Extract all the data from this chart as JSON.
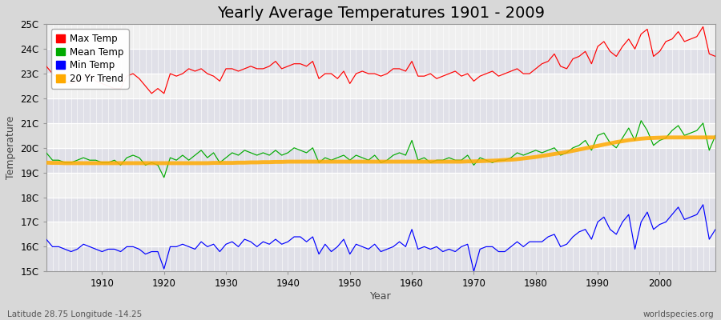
{
  "title": "Yearly Average Temperatures 1901 - 2009",
  "xlabel": "Year",
  "ylabel": "Temperature",
  "bottom_left_text": "Latitude 28.75 Longitude -14.25",
  "bottom_right_text": "worldspecies.org",
  "years": [
    1901,
    1902,
    1903,
    1904,
    1905,
    1906,
    1907,
    1908,
    1909,
    1910,
    1911,
    1912,
    1913,
    1914,
    1915,
    1916,
    1917,
    1918,
    1919,
    1920,
    1921,
    1922,
    1923,
    1924,
    1925,
    1926,
    1927,
    1928,
    1929,
    1930,
    1931,
    1932,
    1933,
    1934,
    1935,
    1936,
    1937,
    1938,
    1939,
    1940,
    1941,
    1942,
    1943,
    1944,
    1945,
    1946,
    1947,
    1948,
    1949,
    1950,
    1951,
    1952,
    1953,
    1954,
    1955,
    1956,
    1957,
    1958,
    1959,
    1960,
    1961,
    1962,
    1963,
    1964,
    1965,
    1966,
    1967,
    1968,
    1969,
    1970,
    1971,
    1972,
    1973,
    1974,
    1975,
    1976,
    1977,
    1978,
    1979,
    1980,
    1981,
    1982,
    1983,
    1984,
    1985,
    1986,
    1987,
    1988,
    1989,
    1990,
    1991,
    1992,
    1993,
    1994,
    1995,
    1996,
    1997,
    1998,
    1999,
    2000,
    2001,
    2002,
    2003,
    2004,
    2005,
    2006,
    2007,
    2008,
    2009
  ],
  "max_temp": [
    23.3,
    23.0,
    22.8,
    22.7,
    22.6,
    22.7,
    22.8,
    23.0,
    22.7,
    22.6,
    22.5,
    22.4,
    22.4,
    22.9,
    23.0,
    22.8,
    22.5,
    22.2,
    22.4,
    22.2,
    23.0,
    22.9,
    23.0,
    23.2,
    23.1,
    23.2,
    23.0,
    22.9,
    22.7,
    23.2,
    23.2,
    23.1,
    23.2,
    23.3,
    23.2,
    23.2,
    23.3,
    23.5,
    23.2,
    23.3,
    23.4,
    23.4,
    23.3,
    23.5,
    22.8,
    23.0,
    23.0,
    22.8,
    23.1,
    22.6,
    23.0,
    23.1,
    23.0,
    23.0,
    22.9,
    23.0,
    23.2,
    23.2,
    23.1,
    23.5,
    22.9,
    22.9,
    23.0,
    22.8,
    22.9,
    23.0,
    23.1,
    22.9,
    23.0,
    22.7,
    22.9,
    23.0,
    23.1,
    22.9,
    23.0,
    23.1,
    23.2,
    23.0,
    23.0,
    23.2,
    23.4,
    23.5,
    23.8,
    23.3,
    23.2,
    23.6,
    23.7,
    23.9,
    23.4,
    24.1,
    24.3,
    23.9,
    23.7,
    24.1,
    24.4,
    24.0,
    24.6,
    24.8,
    23.7,
    23.9,
    24.3,
    24.4,
    24.7,
    24.3,
    24.4,
    24.5,
    24.9,
    23.8,
    23.7
  ],
  "mean_temp": [
    19.8,
    19.5,
    19.5,
    19.4,
    19.4,
    19.5,
    19.6,
    19.5,
    19.5,
    19.4,
    19.4,
    19.5,
    19.3,
    19.6,
    19.7,
    19.6,
    19.3,
    19.4,
    19.3,
    18.8,
    19.6,
    19.5,
    19.7,
    19.5,
    19.7,
    19.9,
    19.6,
    19.8,
    19.4,
    19.6,
    19.8,
    19.7,
    19.9,
    19.8,
    19.7,
    19.8,
    19.7,
    19.9,
    19.7,
    19.8,
    20.0,
    19.9,
    19.8,
    20.0,
    19.4,
    19.6,
    19.5,
    19.6,
    19.7,
    19.5,
    19.7,
    19.6,
    19.5,
    19.7,
    19.4,
    19.5,
    19.7,
    19.8,
    19.7,
    20.3,
    19.5,
    19.6,
    19.4,
    19.5,
    19.5,
    19.6,
    19.5,
    19.5,
    19.7,
    19.3,
    19.6,
    19.5,
    19.4,
    19.5,
    19.5,
    19.6,
    19.8,
    19.7,
    19.8,
    19.9,
    19.8,
    19.9,
    20.0,
    19.7,
    19.8,
    20.0,
    20.1,
    20.3,
    19.9,
    20.5,
    20.6,
    20.2,
    20.0,
    20.4,
    20.8,
    20.3,
    21.1,
    20.7,
    20.1,
    20.3,
    20.4,
    20.7,
    20.9,
    20.5,
    20.6,
    20.7,
    21.0,
    19.9,
    20.5
  ],
  "min_temp": [
    16.3,
    16.0,
    16.0,
    15.9,
    15.8,
    15.9,
    16.1,
    16.0,
    15.9,
    15.8,
    15.9,
    15.9,
    15.8,
    16.0,
    16.0,
    15.9,
    15.7,
    15.8,
    15.8,
    15.1,
    16.0,
    16.0,
    16.1,
    16.0,
    15.9,
    16.2,
    16.0,
    16.1,
    15.8,
    16.1,
    16.2,
    16.0,
    16.3,
    16.2,
    16.0,
    16.2,
    16.1,
    16.3,
    16.1,
    16.2,
    16.4,
    16.4,
    16.2,
    16.4,
    15.7,
    16.1,
    15.8,
    16.0,
    16.3,
    15.7,
    16.1,
    16.0,
    15.9,
    16.1,
    15.8,
    15.9,
    16.0,
    16.2,
    16.0,
    16.7,
    15.9,
    16.0,
    15.9,
    16.0,
    15.8,
    15.9,
    15.8,
    16.0,
    16.1,
    15.0,
    15.9,
    16.0,
    16.0,
    15.8,
    15.8,
    16.0,
    16.2,
    16.0,
    16.2,
    16.2,
    16.2,
    16.4,
    16.5,
    16.0,
    16.1,
    16.4,
    16.6,
    16.7,
    16.3,
    17.0,
    17.2,
    16.7,
    16.5,
    17.0,
    17.3,
    15.9,
    17.0,
    17.4,
    16.7,
    16.9,
    17.0,
    17.3,
    17.6,
    17.1,
    17.2,
    17.3,
    17.7,
    16.3,
    16.7
  ],
  "trend_years": [
    1901,
    1902,
    1903,
    1904,
    1905,
    1906,
    1907,
    1908,
    1909,
    1910,
    1911,
    1912,
    1913,
    1914,
    1915,
    1916,
    1917,
    1918,
    1919,
    1920,
    1921,
    1922,
    1923,
    1924,
    1925,
    1926,
    1927,
    1928,
    1929,
    1930,
    1931,
    1932,
    1933,
    1934,
    1935,
    1936,
    1937,
    1938,
    1939,
    1940,
    1941,
    1942,
    1943,
    1944,
    1945,
    1946,
    1947,
    1948,
    1949,
    1950,
    1951,
    1952,
    1953,
    1954,
    1955,
    1956,
    1957,
    1958,
    1959,
    1960,
    1961,
    1962,
    1963,
    1964,
    1965,
    1966,
    1967,
    1968,
    1969,
    1970,
    1971,
    1972,
    1973,
    1974,
    1975,
    1976,
    1977,
    1978,
    1979,
    1980,
    1981,
    1982,
    1983,
    1984,
    1985,
    1986,
    1987,
    1988,
    1989,
    1990,
    1991,
    1992,
    1993,
    1994,
    1995,
    1996,
    1997,
    1998,
    1999,
    2000,
    2001,
    2002,
    2003,
    2004,
    2005,
    2006,
    2007,
    2008,
    2009
  ],
  "trend_values": [
    19.4,
    19.39,
    19.39,
    19.38,
    19.38,
    19.38,
    19.38,
    19.38,
    19.38,
    19.38,
    19.38,
    19.38,
    19.38,
    19.38,
    19.38,
    19.38,
    19.38,
    19.38,
    19.38,
    19.38,
    19.38,
    19.38,
    19.38,
    19.38,
    19.38,
    19.38,
    19.38,
    19.39,
    19.39,
    19.39,
    19.39,
    19.4,
    19.4,
    19.41,
    19.41,
    19.42,
    19.42,
    19.43,
    19.43,
    19.44,
    19.44,
    19.44,
    19.44,
    19.44,
    19.44,
    19.44,
    19.44,
    19.44,
    19.44,
    19.44,
    19.44,
    19.44,
    19.44,
    19.44,
    19.44,
    19.44,
    19.44,
    19.44,
    19.44,
    19.44,
    19.44,
    19.44,
    19.44,
    19.44,
    19.44,
    19.44,
    19.44,
    19.44,
    19.45,
    19.45,
    19.46,
    19.47,
    19.48,
    19.49,
    19.51,
    19.52,
    19.54,
    19.57,
    19.6,
    19.63,
    19.67,
    19.71,
    19.75,
    19.79,
    19.83,
    19.88,
    19.93,
    19.98,
    20.03,
    20.08,
    20.13,
    20.18,
    20.23,
    20.27,
    20.31,
    20.34,
    20.37,
    20.39,
    20.4,
    20.41,
    20.42,
    20.42,
    20.42,
    20.42,
    20.42,
    20.42,
    20.42,
    20.42,
    20.42
  ],
  "max_color": "#ff0000",
  "mean_color": "#00aa00",
  "min_color": "#0000ff",
  "trend_color": "#ffaa00",
  "bg_color": "#d8d8d8",
  "plot_bg_light": "#f0f0f0",
  "plot_bg_dark": "#e0e0e8",
  "ylim": [
    15.0,
    25.0
  ],
  "yticks": [
    15,
    16,
    17,
    18,
    19,
    20,
    21,
    22,
    23,
    24,
    25
  ],
  "ytick_labels": [
    "15C",
    "16C",
    "17C",
    "18C",
    "19C",
    "20C",
    "21C",
    "22C",
    "23C",
    "24C",
    "25C"
  ],
  "xlim": [
    1901,
    2009
  ],
  "xticks": [
    1910,
    1920,
    1930,
    1940,
    1950,
    1960,
    1970,
    1980,
    1990,
    2000
  ],
  "title_fontsize": 14,
  "label_fontsize": 9,
  "tick_fontsize": 8.5,
  "legend_fontsize": 8.5
}
